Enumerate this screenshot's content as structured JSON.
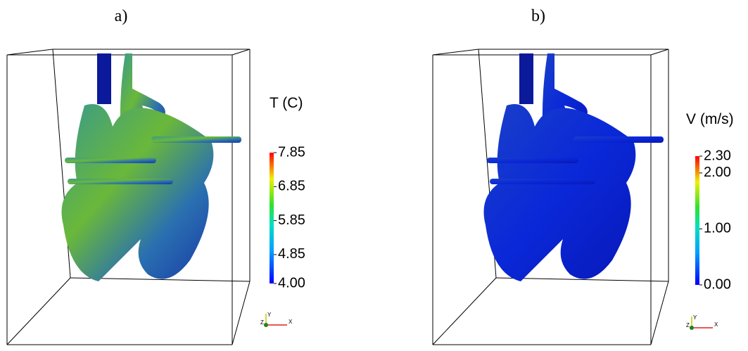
{
  "panels": [
    {
      "label": "a)",
      "legend": {
        "title": "T (C)",
        "range": [
          4.0,
          7.85
        ],
        "ticks": [
          {
            "value": 4.0,
            "label": "4.00"
          },
          4.85,
          5.85,
          6.85,
          7.85
        ]
      },
      "axes": {
        "y": "Y",
        "z": "Z",
        "x": "X"
      }
    },
    {
      "label": "b)",
      "legend": {
        "title": "V (m/s)",
        "range": [
          0.0,
          2.3
        ],
        "ticks": [
          {
            "value": 0.0,
            "label": "0.00"
          },
          {
            "value": 1.0,
            "label": "1.00"
          },
          {
            "value": 2.0,
            "label": "2.00"
          },
          {
            "value": 2.3,
            "label": "2.30"
          }
        ]
      },
      "axes": {
        "y": "Y",
        "z": "Z",
        "x": "X"
      }
    }
  ]
}
